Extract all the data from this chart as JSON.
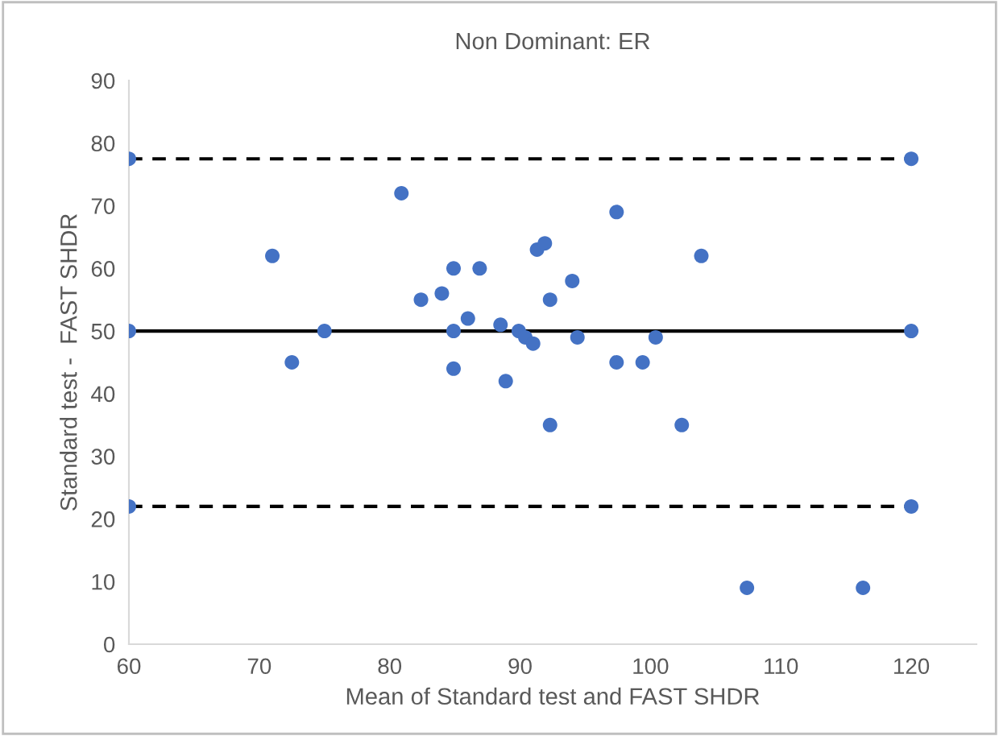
{
  "chart_data": {
    "type": "scatter",
    "title": "Non Dominant: ER",
    "xlabel": "Mean of Standard test and FAST SHDR",
    "ylabel": "Standard test -  FAST SHDR",
    "xlim": [
      60,
      125
    ],
    "ylim": [
      0,
      90
    ],
    "xticks": [
      60,
      70,
      80,
      90,
      100,
      110,
      120
    ],
    "yticks": [
      0,
      10,
      20,
      30,
      40,
      50,
      60,
      70,
      80,
      90
    ],
    "grid": false,
    "legend": false,
    "marker": "circle",
    "series": [
      {
        "type": "line",
        "color": "#000000",
        "line_style": "dashed",
        "marker": "none",
        "x": [
          60,
          120
        ],
        "values": [
          77.5,
          77.5
        ]
      },
      {
        "type": "line",
        "color": "#000000",
        "line_style": "solid",
        "marker": "none",
        "x": [
          60,
          120
        ],
        "values": [
          50,
          50
        ]
      },
      {
        "type": "line",
        "color": "#000000",
        "line_style": "dashed",
        "marker": "none",
        "x": [
          60,
          120
        ],
        "values": [
          22,
          22
        ]
      },
      {
        "color": "#4472c4",
        "x": [
          60,
          60,
          60,
          120,
          120,
          120,
          71.0,
          72.5,
          75.0,
          80.9,
          82.4,
          84.0,
          84.9,
          84.9,
          84.9,
          86.0,
          86.9,
          88.5,
          88.9,
          89.9,
          90.4,
          91.0,
          91.3,
          91.9,
          92.3,
          92.3,
          94.0,
          94.4,
          97.4,
          97.4,
          99.4,
          100.4,
          102.4,
          103.9,
          107.4,
          116.3
        ],
        "values": [
          77.5,
          50,
          22,
          77.5,
          50,
          22,
          62,
          45,
          50,
          72,
          55,
          56,
          60,
          50,
          44,
          52,
          60,
          51,
          42,
          50,
          49,
          48,
          63,
          64,
          55,
          35,
          58,
          49,
          69,
          45,
          45,
          49,
          35,
          62,
          9,
          9
        ]
      }
    ]
  }
}
